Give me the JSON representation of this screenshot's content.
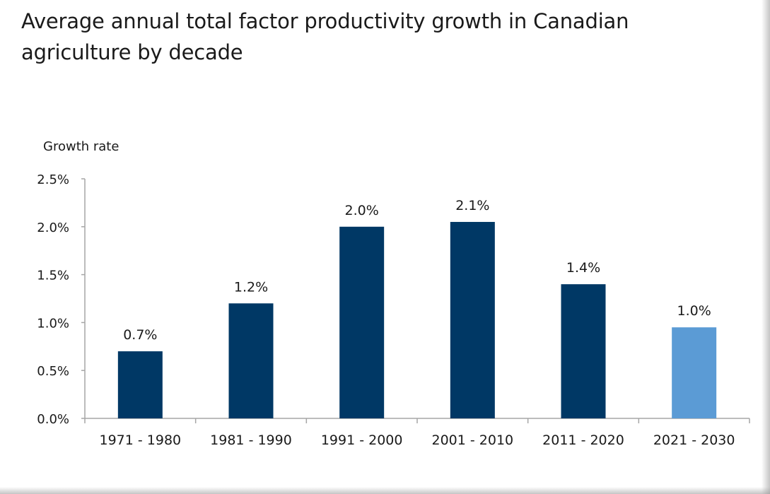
{
  "chart_data": {
    "type": "bar",
    "title": "Average annual total factor productivity growth in Canadian agriculture by decade",
    "xlabel": "",
    "ylabel": "Growth rate",
    "categories": [
      "1971 - 1980",
      "1981 - 1990",
      "1991 - 2000",
      "2001 - 2010",
      "2011 - 2020",
      "2021 - 2030"
    ],
    "values": [
      0.7,
      1.2,
      2.0,
      2.05,
      1.4,
      0.95
    ],
    "data_labels": [
      "0.7%",
      "1.2%",
      "2.0%",
      "2.1%",
      "1.4%",
      "1.0%"
    ],
    "bar_colors": [
      "#003865",
      "#003865",
      "#003865",
      "#003865",
      "#003865",
      "#5b9bd5"
    ],
    "ylim": [
      0,
      2.5
    ],
    "yticks": [
      0,
      0.5,
      1.0,
      1.5,
      2.0,
      2.5
    ],
    "ytick_labels": [
      "0.0%",
      "0.5%",
      "1.0%",
      "1.5%",
      "2.0%",
      "2.5%"
    ],
    "grid": false,
    "legend": "none"
  }
}
